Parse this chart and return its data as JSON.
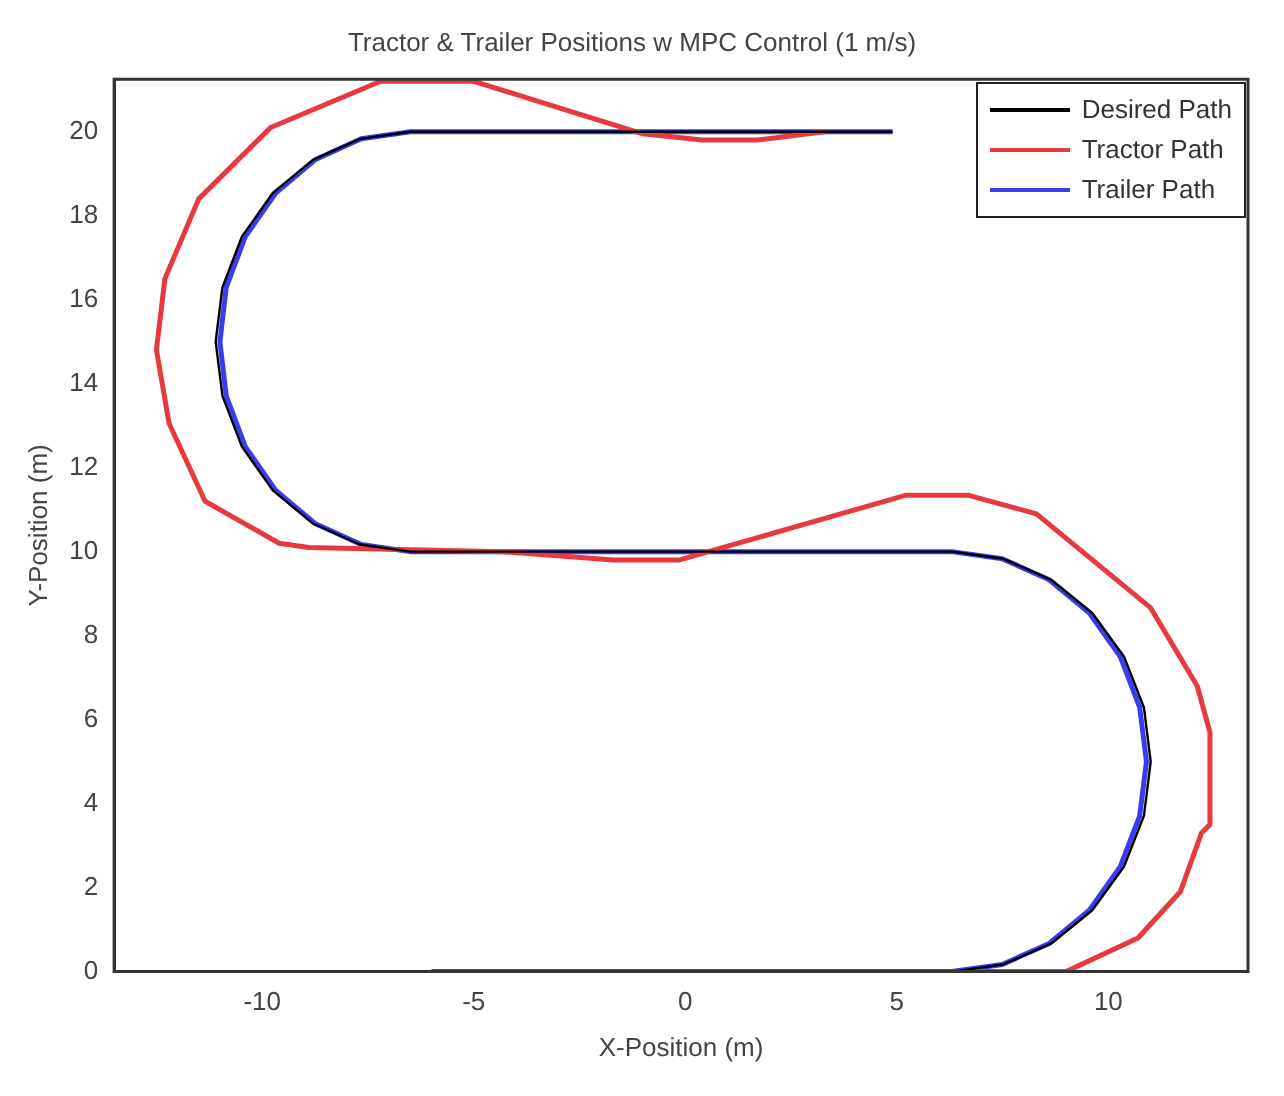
{
  "chart_data": {
    "type": "line",
    "title": "Tractor & Trailer Positions w MPC Control (1 m/s)",
    "xlabel": "X-Position (m)",
    "ylabel": "Y-Position (m)",
    "xlim": [
      -13.5,
      13.3
    ],
    "ylim": [
      0,
      21.25
    ],
    "xticks": [
      -10,
      -5,
      0,
      5,
      10
    ],
    "yticks": [
      0,
      2,
      4,
      6,
      8,
      10,
      12,
      14,
      16,
      18,
      20
    ],
    "grid": false,
    "legend": "top right",
    "marker": "none",
    "line_style": "solid",
    "series": [
      {
        "name": "Desired Path",
        "color": "#000000",
        "x": [
          -6,
          6.3,
          7.52,
          8.65,
          9.62,
          10.37,
          10.84,
          11,
          10.84,
          10.37,
          9.62,
          8.65,
          7.52,
          6.3,
          -6.5,
          -7.69,
          -8.8,
          -9.75,
          -10.48,
          -10.94,
          -11.1,
          -10.94,
          -10.48,
          -9.75,
          -8.8,
          -7.69,
          -6.5,
          4.9
        ],
        "values": [
          0,
          0,
          0.17,
          0.67,
          1.46,
          2.5,
          3.71,
          5,
          6.29,
          7.5,
          8.54,
          9.33,
          9.83,
          10,
          10,
          10.17,
          10.67,
          11.46,
          12.5,
          13.71,
          15,
          16.29,
          17.5,
          18.54,
          19.33,
          19.83,
          20,
          20
        ]
      },
      {
        "name": "Tractor Path",
        "color": "#e8393f",
        "x": [
          6.4,
          9,
          10.7,
          11.7,
          12.2,
          12.4,
          12.4,
          12.1,
          11,
          8.3,
          6.7,
          5.2,
          0.9,
          -0.15,
          -1.7,
          -4.3,
          -8.9,
          -9.6,
          -11.35,
          -12.2,
          -12.5,
          -12.3,
          -11.5,
          -9.8,
          -7.2,
          -5,
          -3.4,
          -1,
          0.4,
          1.7,
          3.3
        ],
        "values": [
          0,
          0,
          0.8,
          1.9,
          3.3,
          3.5,
          5.7,
          6.8,
          8.66,
          10.9,
          11.34,
          11.34,
          10.1,
          9.8,
          9.8,
          10,
          10.1,
          10.2,
          11.2,
          13.05,
          14.8,
          16.5,
          18.4,
          20.1,
          21.2,
          21.2,
          20.7,
          19.95,
          19.8,
          19.8,
          20
        ]
      },
      {
        "name": "Trailer Path",
        "color": "#3b3bf0",
        "x": [
          -6,
          6.3,
          7.49,
          8.6,
          9.55,
          10.28,
          10.74,
          10.9,
          10.74,
          10.28,
          9.55,
          8.6,
          7.49,
          6.3,
          -6.5,
          -7.66,
          -8.75,
          -9.68,
          -10.4,
          -10.85,
          -11,
          -10.85,
          -10.4,
          -9.68,
          -8.75,
          -7.66,
          -6.5,
          4.9
        ],
        "values": [
          0,
          0,
          0.17,
          0.67,
          1.46,
          2.5,
          3.71,
          5,
          6.29,
          7.5,
          8.54,
          9.33,
          9.83,
          10,
          10,
          10.17,
          10.67,
          11.46,
          12.5,
          13.71,
          15,
          16.29,
          17.5,
          18.54,
          19.33,
          19.83,
          20,
          20
        ]
      }
    ]
  }
}
